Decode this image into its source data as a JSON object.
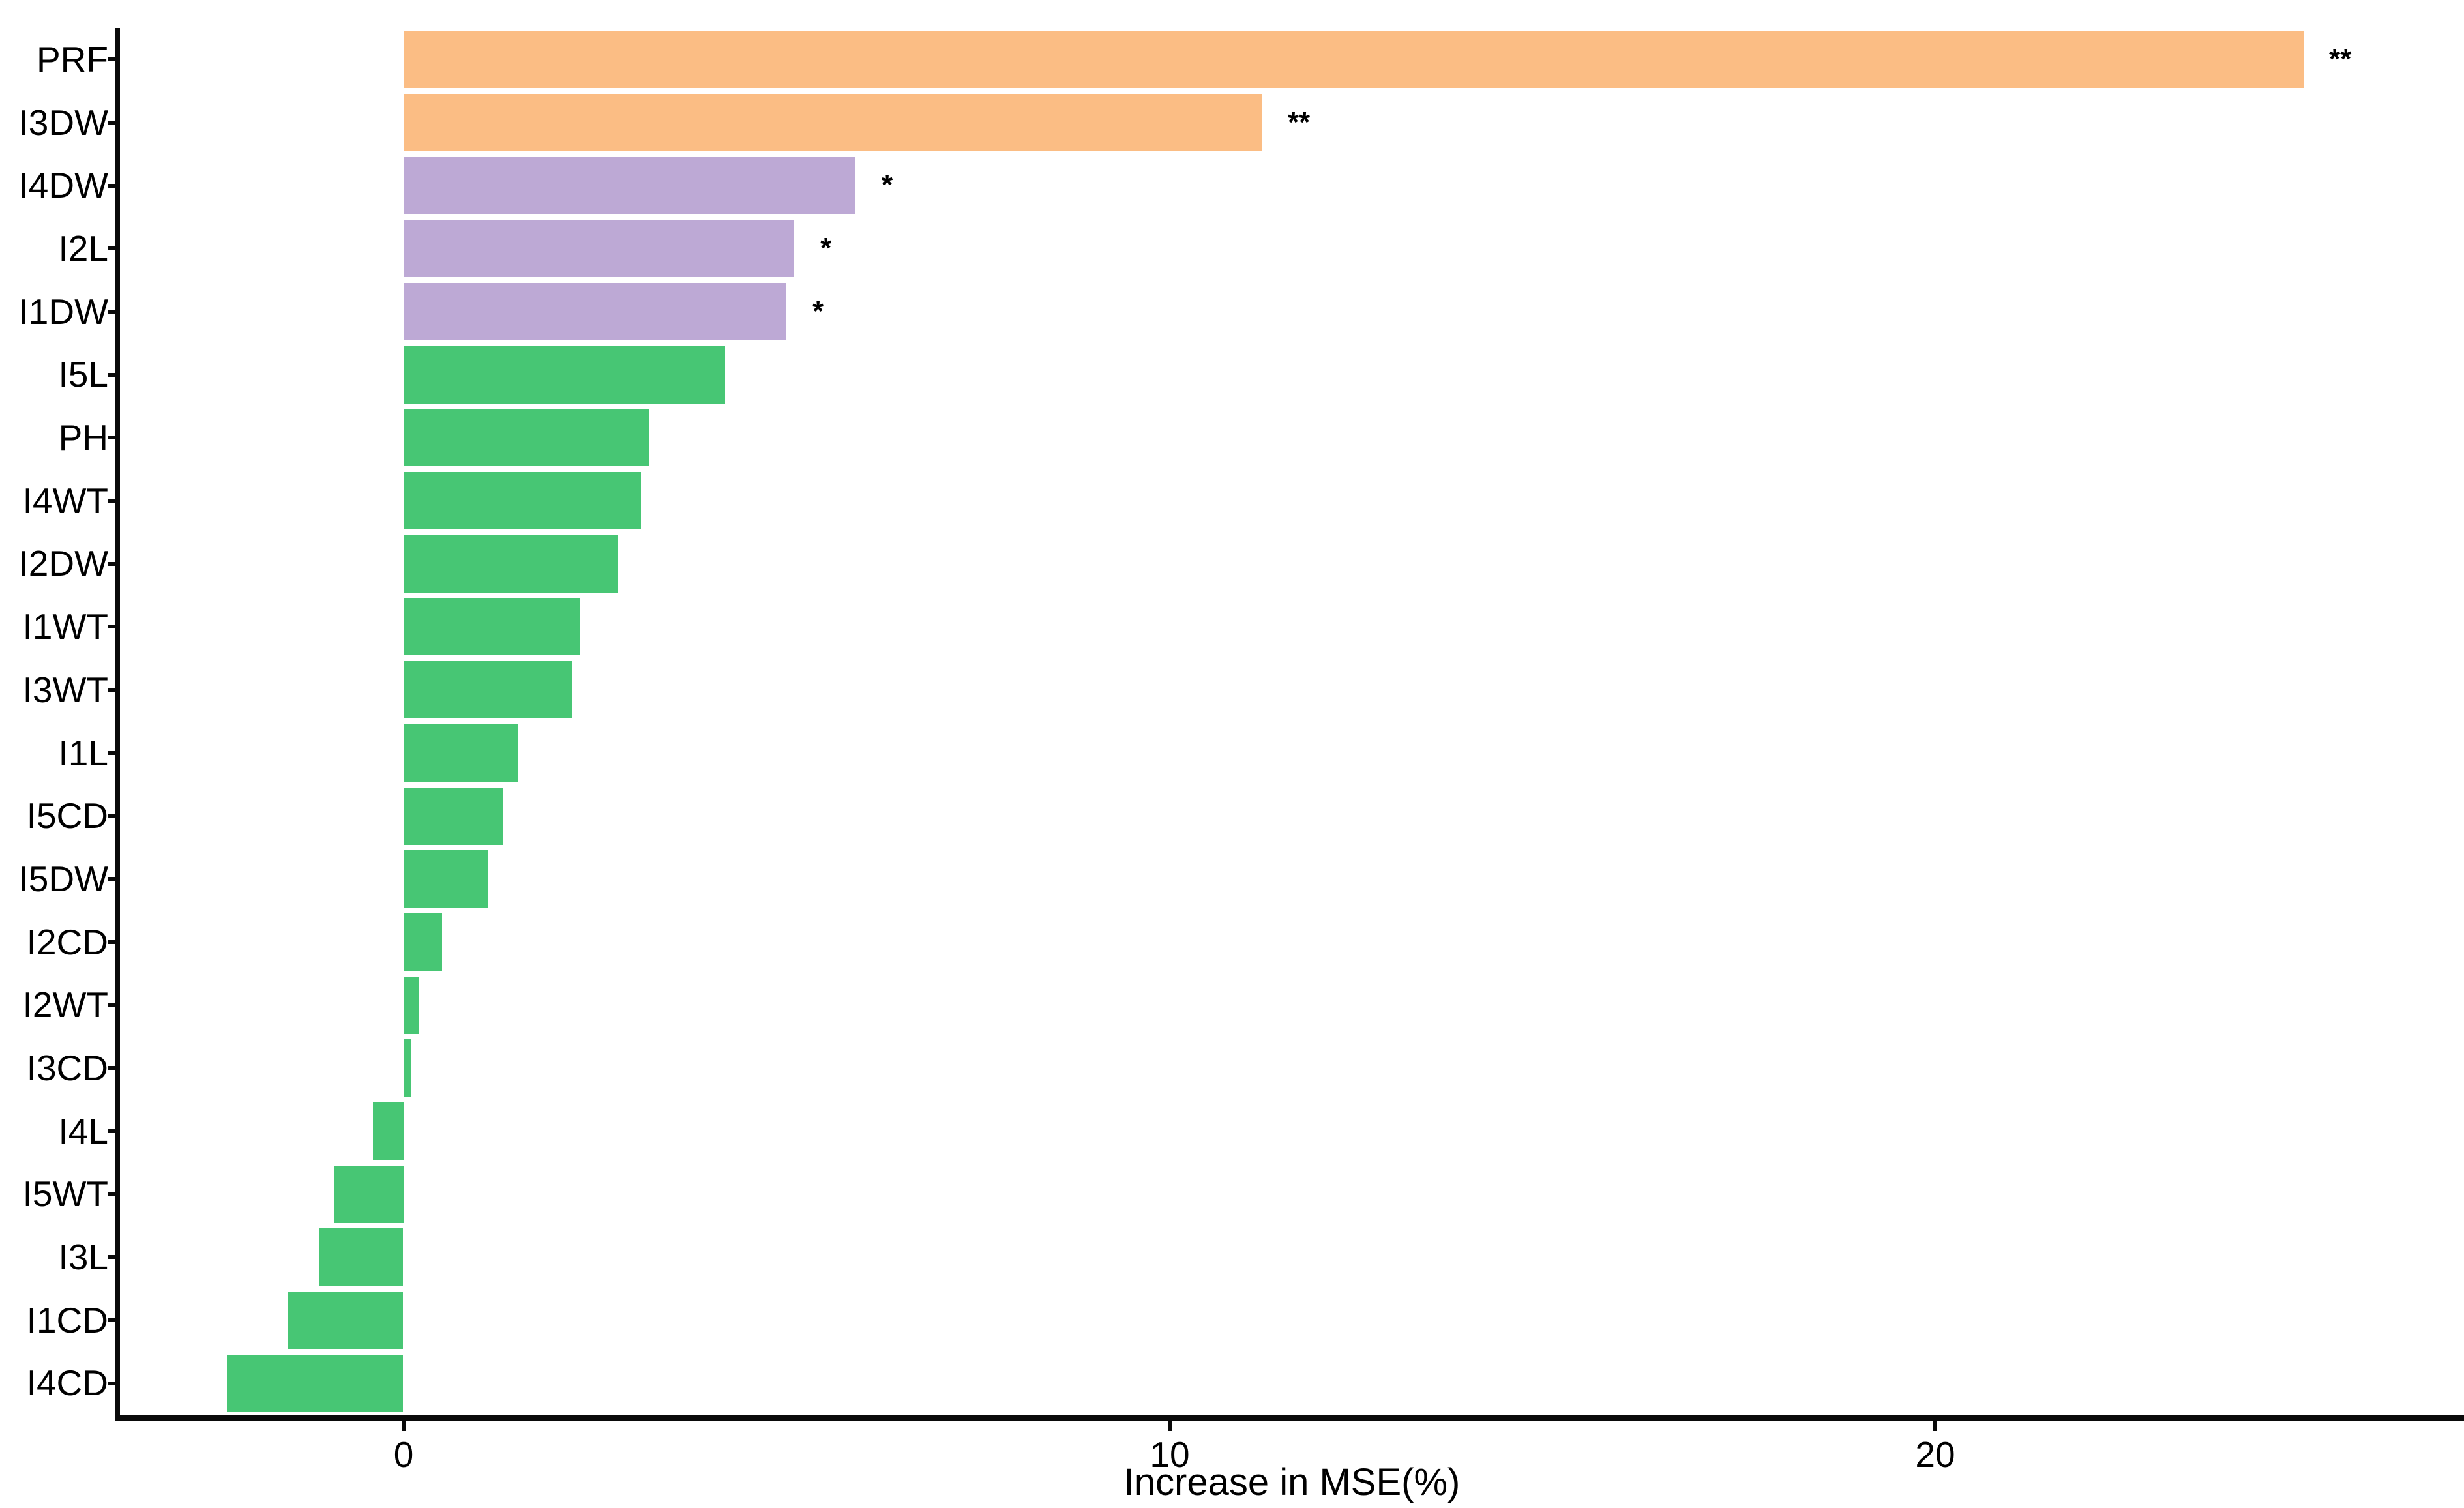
{
  "chart_data": {
    "type": "bar",
    "orientation": "horizontal",
    "title": "",
    "xlabel": "Increase in MSE(%)",
    "ylabel": "",
    "xlim": [
      -3.7,
      26.9
    ],
    "x_ticks": [
      {
        "value": 0,
        "label": "0"
      },
      {
        "value": 10,
        "label": "10"
      },
      {
        "value": 20,
        "label": "20"
      }
    ],
    "grid": "off",
    "legend": "none",
    "background_color": "#ffffff",
    "axis_color": "#0a0a0a",
    "text_color": "#000000",
    "palette": {
      "orange": "#FBBD84",
      "purple": "#BDA9D5",
      "green": "#47C674"
    },
    "bars": [
      {
        "label": "PRF",
        "value": 24.8,
        "significance": "**",
        "color": "#FBBD84"
      },
      {
        "label": "I3DW",
        "value": 11.2,
        "significance": "**",
        "color": "#FBBD84"
      },
      {
        "label": "I4DW",
        "value": 5.9,
        "significance": "*",
        "color": "#BDA9D5"
      },
      {
        "label": "I2L",
        "value": 5.1,
        "significance": "*",
        "color": "#BDA9D5"
      },
      {
        "label": "I1DW",
        "value": 5.0,
        "significance": "*",
        "color": "#BDA9D5"
      },
      {
        "label": "I5L",
        "value": 4.2,
        "significance": "",
        "color": "#47C674"
      },
      {
        "label": "PH",
        "value": 3.2,
        "significance": "",
        "color": "#47C674"
      },
      {
        "label": "I4WT",
        "value": 3.1,
        "significance": "",
        "color": "#47C674"
      },
      {
        "label": "I2DW",
        "value": 2.8,
        "significance": "",
        "color": "#47C674"
      },
      {
        "label": "I1WT",
        "value": 2.3,
        "significance": "",
        "color": "#47C674"
      },
      {
        "label": "I3WT",
        "value": 2.2,
        "significance": "",
        "color": "#47C674"
      },
      {
        "label": "I1L",
        "value": 1.5,
        "significance": "",
        "color": "#47C674"
      },
      {
        "label": "I5CD",
        "value": 1.3,
        "significance": "",
        "color": "#47C674"
      },
      {
        "label": "I5DW",
        "value": 1.1,
        "significance": "",
        "color": "#47C674"
      },
      {
        "label": "I2CD",
        "value": 0.5,
        "significance": "",
        "color": "#47C674"
      },
      {
        "label": "I2WT",
        "value": 0.2,
        "significance": "",
        "color": "#47C674"
      },
      {
        "label": "I3CD",
        "value": 0.1,
        "significance": "",
        "color": "#47C674"
      },
      {
        "label": "I4L",
        "value": -0.4,
        "significance": "",
        "color": "#47C674"
      },
      {
        "label": "I5WT",
        "value": -0.9,
        "significance": "",
        "color": "#47C674"
      },
      {
        "label": "I3L",
        "value": -1.1,
        "significance": "",
        "color": "#47C674"
      },
      {
        "label": "I1CD",
        "value": -1.5,
        "significance": "",
        "color": "#47C674"
      },
      {
        "label": "I4CD",
        "value": -2.3,
        "significance": "",
        "color": "#47C674"
      }
    ]
  }
}
